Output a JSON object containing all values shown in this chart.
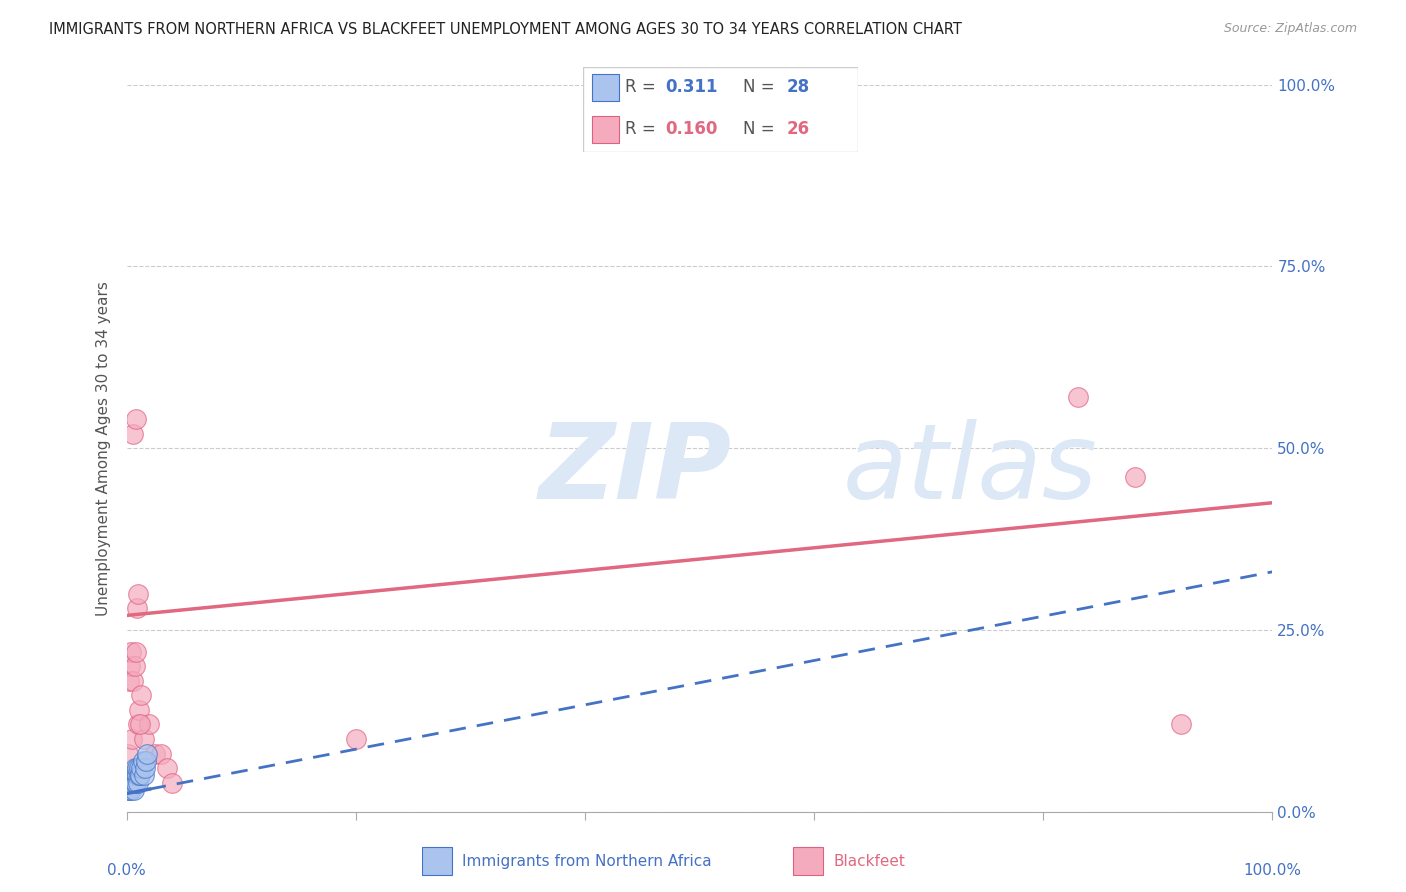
{
  "title": "IMMIGRANTS FROM NORTHERN AFRICA VS BLACKFEET UNEMPLOYMENT AMONG AGES 30 TO 34 YEARS CORRELATION CHART",
  "source": "Source: ZipAtlas.com",
  "ylabel": "Unemployment Among Ages 30 to 34 years",
  "blue_R": "0.311",
  "blue_N": "28",
  "pink_R": "0.160",
  "pink_N": "26",
  "blue_fill": "#aac4ee",
  "blue_edge": "#4472c4",
  "pink_fill": "#f4abbe",
  "pink_edge": "#e06080",
  "pink_line_color": "#e06880",
  "blue_line_color": "#4472c4",
  "watermark_color": "#dce8f5",
  "background_color": "#ffffff",
  "grid_color": "#cccccc",
  "right_label_color": "#4472c4",
  "yticks": [
    0,
    25,
    50,
    75,
    100
  ],
  "xticks": [
    0,
    20,
    40,
    60,
    80,
    100
  ],
  "xlim": [
    0,
    100
  ],
  "ylim": [
    0,
    100
  ],
  "blue_x": [
    0.1,
    0.15,
    0.2,
    0.25,
    0.3,
    0.35,
    0.4,
    0.45,
    0.5,
    0.55,
    0.6,
    0.65,
    0.7,
    0.75,
    0.8,
    0.85,
    0.9,
    0.95,
    1.0,
    1.05,
    1.1,
    1.2,
    1.3,
    1.4,
    1.5,
    1.6,
    1.7,
    1.8
  ],
  "blue_y": [
    3,
    4,
    5,
    3,
    4,
    5,
    3,
    4,
    5,
    4,
    5,
    3,
    4,
    6,
    5,
    4,
    5,
    6,
    4,
    5,
    6,
    5,
    6,
    7,
    5,
    6,
    7,
    8
  ],
  "pink_x": [
    0.1,
    0.2,
    0.3,
    0.4,
    0.5,
    0.6,
    0.7,
    0.8,
    0.9,
    1.0,
    1.1,
    1.3,
    1.5,
    2.0,
    2.5,
    3.0,
    3.5,
    4.0,
    0.6,
    0.8,
    1.0,
    1.2,
    20.0,
    83.0,
    88.0,
    92.0
  ],
  "pink_y": [
    8,
    18,
    20,
    22,
    10,
    18,
    20,
    22,
    28,
    12,
    14,
    16,
    10,
    12,
    8,
    8,
    6,
    4,
    52,
    54,
    30,
    12,
    10,
    57,
    46,
    12
  ],
  "pink_intercept": 27.0,
  "pink_slope": 0.155,
  "blue_intercept": 2.5,
  "blue_slope": 0.305,
  "blue_solid_end": 2.0
}
